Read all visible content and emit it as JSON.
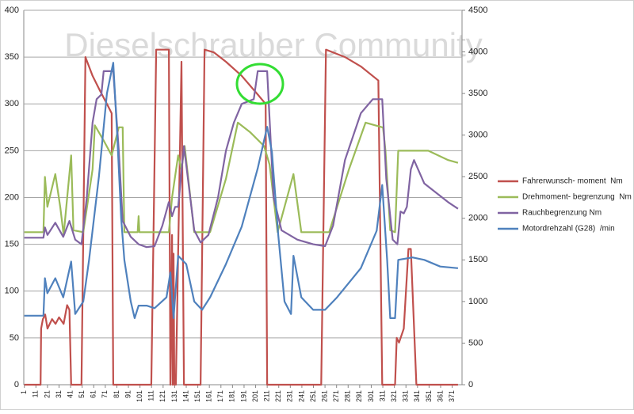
{
  "chart_data": {
    "type": "line",
    "annotation": "Dieselschrauber Community",
    "xlim": [
      0.5,
      379.5
    ],
    "xticks": [
      1,
      11,
      21,
      31,
      41,
      51,
      61,
      71,
      81,
      91,
      101,
      111,
      121,
      131,
      141,
      151,
      161,
      171,
      181,
      191,
      201,
      211,
      221,
      231,
      241,
      251,
      261,
      271,
      281,
      291,
      301,
      311,
      321,
      331,
      341,
      351,
      361,
      371
    ],
    "ylim": [
      0,
      400
    ],
    "yticks": [
      0,
      50,
      100,
      150,
      200,
      250,
      300,
      350,
      400
    ],
    "y2lim": [
      0,
      4500
    ],
    "y2ticks": [
      0,
      500,
      1000,
      1500,
      2000,
      2500,
      3000,
      3500,
      4000,
      4500
    ],
    "grid": true,
    "legend": "right",
    "series": [
      {
        "name": "Fahrerwunsch- moment  Nm",
        "color": "#c0504d",
        "x": [
          1,
          15,
          15.5,
          17,
          19,
          21,
          23,
          25,
          28,
          31,
          35,
          38,
          40,
          41.5,
          50.4,
          53.8,
          60,
          66,
          72.4,
          76.5,
          77.9,
          110.8,
          115,
          126,
          127.3,
          128.7,
          129.3,
          130,
          130.7,
          131.4,
          132,
          136.9,
          139,
          153.4,
          156.8,
          165,
          175.3,
          189,
          202.8,
          209.7,
          211,
          257.7,
          261.8,
          278.3,
          292,
          307.1,
          310.5,
          321.6,
          323,
          325,
          329.1,
          333.2,
          335.2,
          340,
          376
        ],
        "values": [
          0,
          0,
          60,
          70,
          75,
          60,
          65,
          70,
          65,
          72,
          65,
          85,
          80,
          0,
          0,
          350,
          330,
          315,
          300,
          290,
          0,
          0,
          358,
          358,
          0,
          160,
          0,
          140,
          0,
          10,
          0,
          345,
          0,
          0,
          358,
          355,
          345,
          330,
          310,
          300,
          0,
          0,
          358,
          350,
          340,
          325,
          0,
          0,
          50,
          45,
          60,
          145,
          145,
          0,
          0
        ]
      },
      {
        "name": "Drehmoment- begrenzung  Nm",
        "color": "#9bbb59",
        "x": [
          1,
          17.5,
          18.8,
          20.9,
          27.8,
          32,
          35,
          41.5,
          43.5,
          52,
          60,
          62,
          70,
          76.5,
          82.7,
          86,
          87.5,
          99,
          99.8,
          100.5,
          126,
          128.7,
          134,
          136.9,
          139.6,
          147.9,
          161.6,
          175.3,
          185.6,
          196,
          208.3,
          213.1,
          220,
          233.7,
          240.5,
          264.6,
          281.7,
          296.1,
          310.5,
          311.2,
          313.3,
          317.4,
          321.6,
          324.3,
          350.3,
          367.5,
          376
        ],
        "values": [
          163,
          163,
          222,
          190,
          225,
          190,
          160,
          245,
          165,
          163,
          230,
          277,
          260,
          245,
          275,
          275,
          163,
          163,
          180,
          163,
          163,
          200,
          245,
          230,
          255,
          163,
          163,
          220,
          280,
          270,
          255,
          235,
          163,
          225,
          163,
          163,
          230,
          280,
          275,
          275,
          250,
          165,
          163,
          250,
          250,
          240,
          237
        ]
      },
      {
        "name": "Rauchbegrenzung Nm",
        "color": "#8064a2",
        "x": [
          1,
          17.5,
          18.8,
          21,
          27.8,
          34.6,
          40,
          45,
          50.4,
          55,
          60,
          63.5,
          67.6,
          69.6,
          77.9,
          82.7,
          86,
          93,
          99.8,
          106.7,
          113.6,
          120.4,
          125.9,
          128.7,
          131.4,
          134,
          139,
          147.9,
          153.4,
          160.2,
          168.5,
          175.3,
          182.2,
          189,
          199.4,
          202.8,
          211,
          216.5,
          223.4,
          237,
          250.8,
          261.1,
          268,
          278.3,
          292,
          302.3,
          310.5,
          314,
          319.5,
          323.6,
          326.3,
          329.1,
          331.8,
          335.2,
          338,
          346.9,
          357.2,
          367.5,
          376
        ],
        "values": [
          157,
          157,
          168,
          160,
          173,
          158,
          175,
          155,
          150,
          200,
          280,
          305,
          310,
          335,
          335,
          250,
          175,
          158,
          150,
          147,
          148,
          170,
          195,
          180,
          190,
          190,
          255,
          165,
          152,
          160,
          200,
          250,
          280,
          300,
          305,
          335,
          335,
          200,
          165,
          155,
          150,
          148,
          170,
          240,
          290,
          305,
          305,
          220,
          155,
          150,
          185,
          183,
          190,
          230,
          240,
          215,
          205,
          195,
          188
        ]
      },
      {
        "name": "Motordrehzahl (G28)  /min",
        "color": "#4f81bd",
        "axis": "y2",
        "x": [
          1,
          17.5,
          18.8,
          20.9,
          27.8,
          34.6,
          41.5,
          45,
          52,
          57,
          65.5,
          72.4,
          77.9,
          81.3,
          84.7,
          87.5,
          93,
          96.4,
          99.8,
          106.7,
          113.6,
          123.9,
          127.3,
          130,
          134,
          141,
          147.9,
          154.7,
          161.6,
          175.3,
          189,
          202.8,
          211,
          215.1,
          220.6,
          226,
          231.6,
          233.7,
          240.5,
          250.8,
          261.1,
          271.4,
          292,
          305.7,
          310.5,
          314.7,
          317.4,
          321.6,
          324.3,
          336.6,
          346.9,
          360.6,
          376
        ],
        "values": [
          830,
          830,
          1280,
          1100,
          1280,
          1050,
          1480,
          850,
          1000,
          1500,
          2500,
          3500,
          3870,
          3000,
          2000,
          1500,
          1000,
          800,
          950,
          950,
          920,
          1050,
          1350,
          800,
          1550,
          1450,
          1000,
          900,
          1050,
          1450,
          1900,
          2600,
          3100,
          2800,
          1800,
          1000,
          850,
          1550,
          1050,
          900,
          900,
          1050,
          1400,
          1850,
          2400,
          1500,
          800,
          800,
          1500,
          1530,
          1500,
          1420,
          1400
        ]
      }
    ]
  }
}
